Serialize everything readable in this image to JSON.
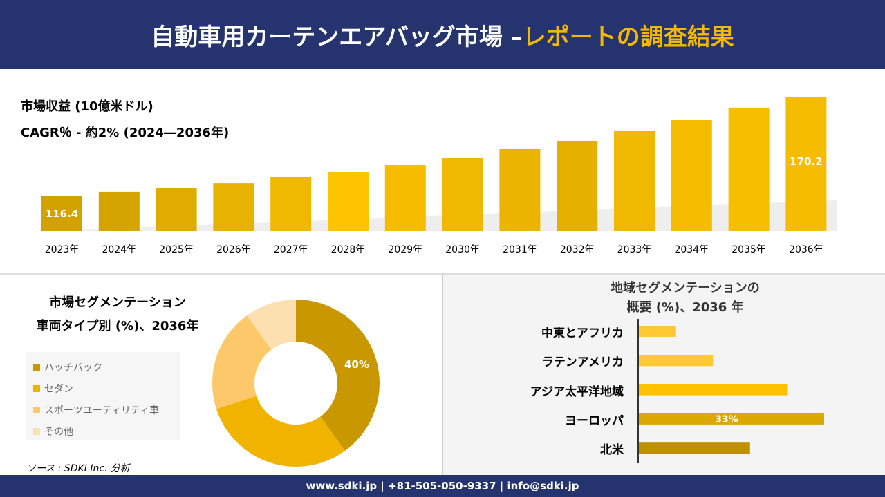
{
  "header": {
    "title_main": "自動車用カーテンエアバッグ市場 –",
    "title_highlight": "レポートの調査結果"
  },
  "revenue": {
    "title": "市場収益 (10億米ドル)",
    "cagr": "CAGR％ - 約2% (2024―2036年)"
  },
  "chart_data": [
    {
      "type": "bar",
      "categories": [
        "2023年",
        "2024年",
        "2025年",
        "2026年",
        "2027年",
        "2028年",
        "2029年",
        "2030年",
        "2031年",
        "2032年",
        "2033年",
        "2034年",
        "2035年",
        "2036年"
      ],
      "values": [
        116.4,
        118.7,
        120.9,
        123.5,
        126.6,
        129.6,
        133.3,
        137.1,
        142.0,
        146.5,
        151.8,
        157.8,
        164.6,
        170.2
      ],
      "data_labels": {
        "0": "116.4",
        "13": "170.2"
      },
      "colors": [
        "#d4a200",
        "#d6a400",
        "#e0ac00",
        "#e8b200",
        "#f0b800",
        "#ffc400",
        "#f5bc00",
        "#f0b800",
        "#ebb400",
        "#e6b000",
        "#f0b800",
        "#f5bc00",
        "#f7be00",
        "#f5bc00"
      ]
    },
    {
      "type": "pie",
      "title_line1": "市場セグメンテーション",
      "title_line2": "車両タイプ別 (%)、2036年",
      "labels": [
        "ハッチバック",
        "セダン",
        "スポーツユーティリティ車",
        "その他"
      ],
      "values": [
        40,
        30,
        20,
        10
      ],
      "colors": [
        "#c99700",
        "#f0b400",
        "#fdc86a",
        "#fde0b0"
      ],
      "data_labels": {
        "0": "40%"
      }
    },
    {
      "type": "bar",
      "orientation": "horizontal",
      "title_line1": "地域セグメンテーションの",
      "title_line2": "概要 (%)、2036 年",
      "categories": [
        "中東とアフリカ",
        "ラテンアメリカ",
        "アジア太平洋地域",
        "ヨーロッパ",
        "北米"
      ],
      "values": [
        6.5,
        13.2,
        26.4,
        33,
        19.8
      ],
      "data_labels": {
        "3": "33%"
      },
      "colors": [
        "#ffc933",
        "#ffc933",
        "#ffc000",
        "#dba800",
        "#bf9000"
      ]
    }
  ],
  "source": "ソース : SDKI Inc. 分析",
  "footer": "www.sdki.jp | +81-505-050-9337 | info@sdki.jp"
}
